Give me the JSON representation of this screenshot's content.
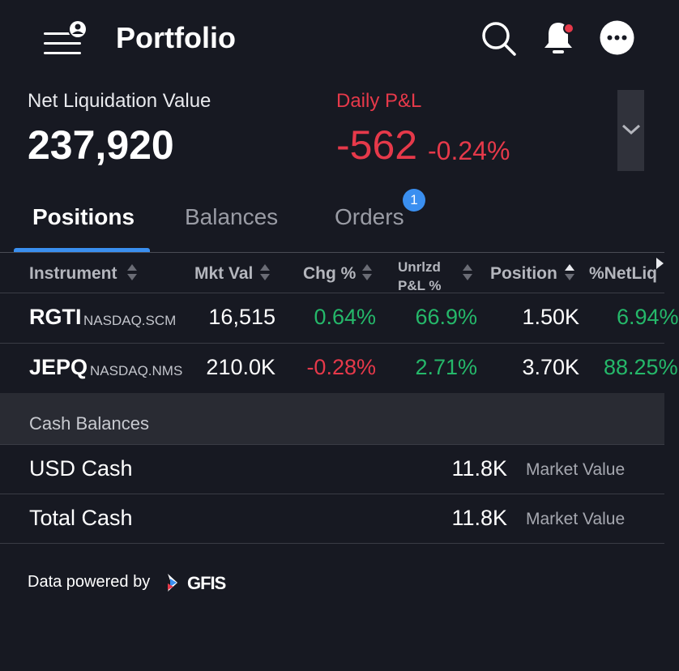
{
  "header": {
    "title": "Portfolio"
  },
  "summary": {
    "nlv_label": "Net Liquidation Value",
    "nlv_value": "237,920",
    "pnl_label": "Daily P&L",
    "pnl_value": "-562",
    "pnl_pct": "-0.24%"
  },
  "tabs": {
    "items": [
      {
        "label": "Positions",
        "active": true
      },
      {
        "label": "Balances",
        "active": false
      },
      {
        "label": "Orders",
        "active": false,
        "badge": "1"
      }
    ]
  },
  "table": {
    "headers": {
      "instrument": "Instrument",
      "mkt_val": "Mkt Val",
      "chg_pct": "Chg %",
      "unrlzd_line1": "Unrlzd",
      "unrlzd_line2": "P&L %",
      "position": "Position",
      "netliq": "%NetLiq"
    },
    "rows": [
      {
        "symbol": "RGTI",
        "exchange": "NASDAQ.SCM",
        "mkt_val": "16,515",
        "chg_pct": "0.64%",
        "unrlzd": "66.9%",
        "position": "1.50K",
        "netliq": "6.94%"
      },
      {
        "symbol": "JEPQ",
        "exchange": "NASDAQ.NMS",
        "mkt_val": "210.0K",
        "chg_pct": "-0.28%",
        "unrlzd": "2.71%",
        "position": "3.70K",
        "netliq": "88.25%"
      }
    ]
  },
  "cash": {
    "header": "Cash Balances",
    "rows": [
      {
        "name": "USD Cash",
        "value": "11.8K",
        "type": "Market Value"
      },
      {
        "name": "Total Cash",
        "value": "11.8K",
        "type": "Market Value"
      }
    ]
  },
  "footer": {
    "powered_by": "Data powered by",
    "logo_text": "GFIS"
  },
  "colors": {
    "background": "#171922",
    "accent": "#3a8ff0",
    "positive": "#25b86a",
    "negative": "#e6394a"
  }
}
